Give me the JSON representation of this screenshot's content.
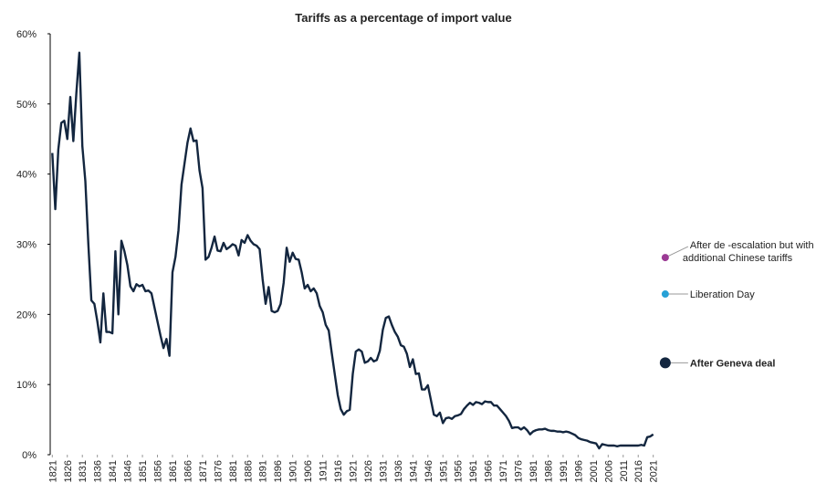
{
  "chart_data": {
    "type": "line",
    "title": "Tariffs as a percentage of import value",
    "x": [
      1821,
      1822,
      1823,
      1824,
      1825,
      1826,
      1827,
      1828,
      1829,
      1830,
      1831,
      1832,
      1833,
      1834,
      1835,
      1836,
      1837,
      1838,
      1839,
      1840,
      1841,
      1842,
      1843,
      1844,
      1845,
      1846,
      1847,
      1848,
      1849,
      1850,
      1851,
      1852,
      1853,
      1854,
      1855,
      1856,
      1857,
      1858,
      1859,
      1860,
      1861,
      1862,
      1863,
      1864,
      1865,
      1866,
      1867,
      1868,
      1869,
      1870,
      1871,
      1872,
      1873,
      1874,
      1875,
      1876,
      1877,
      1878,
      1879,
      1880,
      1881,
      1882,
      1883,
      1884,
      1885,
      1886,
      1887,
      1888,
      1889,
      1890,
      1891,
      1892,
      1893,
      1894,
      1895,
      1896,
      1897,
      1898,
      1899,
      1900,
      1901,
      1902,
      1903,
      1904,
      1905,
      1906,
      1907,
      1908,
      1909,
      1910,
      1911,
      1912,
      1913,
      1914,
      1915,
      1916,
      1917,
      1918,
      1919,
      1920,
      1921,
      1922,
      1923,
      1924,
      1925,
      1926,
      1927,
      1928,
      1929,
      1930,
      1931,
      1932,
      1933,
      1934,
      1935,
      1936,
      1937,
      1938,
      1939,
      1940,
      1941,
      1942,
      1943,
      1944,
      1945,
      1946,
      1947,
      1948,
      1949,
      1950,
      1951,
      1952,
      1953,
      1954,
      1955,
      1956,
      1957,
      1958,
      1959,
      1960,
      1961,
      1962,
      1963,
      1964,
      1965,
      1966,
      1967,
      1968,
      1969,
      1970,
      1971,
      1972,
      1973,
      1974,
      1975,
      1976,
      1977,
      1978,
      1979,
      1980,
      1981,
      1982,
      1983,
      1984,
      1985,
      1986,
      1987,
      1988,
      1989,
      1990,
      1991,
      1992,
      1993,
      1994,
      1995,
      1996,
      1997,
      1998,
      1999,
      2000,
      2001,
      2002,
      2003,
      2004,
      2005,
      2006,
      2007,
      2008,
      2009,
      2010,
      2011,
      2012,
      2013,
      2014,
      2015,
      2016,
      2017,
      2018,
      2019,
      2020,
      2021
    ],
    "series": [
      {
        "color": "#13263f",
        "values": [
          43,
          35,
          43.5,
          47.3,
          47.6,
          45,
          51,
          44.7,
          51.5,
          57.3,
          44,
          39,
          30,
          22,
          21.5,
          19,
          16,
          23,
          17.5,
          17.5,
          17.3,
          29,
          20,
          30.5,
          29,
          27,
          24,
          23.3,
          24.3,
          24,
          24.2,
          23.3,
          23.4,
          23,
          21,
          19,
          17,
          15.2,
          16.5,
          14.1,
          26,
          28.2,
          32,
          38.5,
          41.5,
          44.5,
          46.5,
          44.7,
          44.8,
          40.5,
          38,
          27.8,
          28.2,
          29.5,
          31.1,
          29.1,
          29,
          30.2,
          29.3,
          29.6,
          30,
          29.8,
          28.4,
          30.6,
          30.2,
          31.3,
          30.5,
          30,
          29.8,
          29.3,
          25,
          21.5,
          23.9,
          20.5,
          20.3,
          20.5,
          21.5,
          24.5,
          29.5,
          27.5,
          28.8,
          27.9,
          27.8,
          26,
          23.7,
          24.2,
          23.3,
          23.7,
          23,
          21.2,
          20.3,
          18.5,
          17.7,
          14.5,
          11.5,
          8.5,
          6.5,
          5.7,
          6.2,
          6.4,
          11.5,
          14.7,
          15,
          14.7,
          13.1,
          13.3,
          13.8,
          13.3,
          13.5,
          14.8,
          17.8,
          19.5,
          19.7,
          18.5,
          17.5,
          16.8,
          15.6,
          15.4,
          14.4,
          12.5,
          13.6,
          11.5,
          11.6,
          9.3,
          9.3,
          9.9,
          7.8,
          5.7,
          5.5,
          6,
          4.5,
          5.2,
          5.3,
          5.1,
          5.5,
          5.6,
          5.8,
          6.5,
          7,
          7.4,
          7.1,
          7.5,
          7.4,
          7.2,
          7.6,
          7.5,
          7.5,
          7,
          7,
          6.5,
          6,
          5.5,
          4.8,
          3.8,
          3.9,
          3.9,
          3.6,
          3.9,
          3.5,
          2.9,
          3.3,
          3.5,
          3.6,
          3.6,
          3.7,
          3.5,
          3.4,
          3.4,
          3.3,
          3.3,
          3.2,
          3.3,
          3.2,
          3,
          2.8,
          2.4,
          2.2,
          2.1,
          2,
          1.8,
          1.7,
          1.6,
          0.9,
          1.5,
          1.4,
          1.3,
          1.3,
          1.3,
          1.2,
          1.3,
          1.3,
          1.3,
          1.3,
          1.3,
          1.3,
          1.3,
          1.4,
          1.3,
          2.5,
          2.6,
          2.9
        ]
      }
    ],
    "points": {
      "x": [
        2025,
        2025,
        2025
      ],
      "values": [
        28.1,
        22.9,
        13.1
      ],
      "colors": [
        "#9b3a94",
        "#27a1d6",
        "#13263f"
      ],
      "labels": [
        [
          "After de -escalation but with",
          "additional Chinese tariffs"
        ],
        [
          "Liberation Day"
        ],
        [
          "After Geneva deal"
        ]
      ]
    },
    "xlim": [
      1820,
      2070
    ],
    "xticks": [
      1821,
      1826,
      1831,
      1836,
      1841,
      1846,
      1851,
      1856,
      1861,
      1866,
      1871,
      1876,
      1881,
      1886,
      1891,
      1896,
      1901,
      1906,
      1911,
      1916,
      1921,
      1926,
      1931,
      1936,
      1941,
      1946,
      1951,
      1956,
      1961,
      1966,
      1971,
      1976,
      1981,
      1986,
      1991,
      1996,
      2001,
      2006,
      2011,
      2016,
      2021
    ],
    "ylim": [
      0,
      60
    ],
    "yticks": [
      {
        "value": 0,
        "label": "0%"
      },
      {
        "value": 10,
        "label": "10%"
      },
      {
        "value": 20,
        "label": "20%"
      },
      {
        "value": 30,
        "label": "30%"
      },
      {
        "value": 40,
        "label": "40%"
      },
      {
        "value": 50,
        "label": "50%"
      },
      {
        "value": 60,
        "label": "60%"
      }
    ]
  }
}
